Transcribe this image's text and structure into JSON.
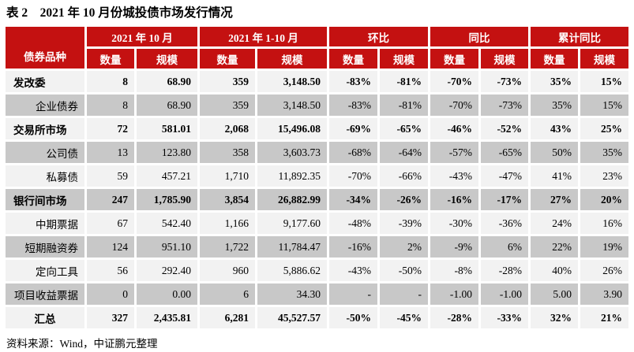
{
  "title": "表 2　2021 年 10 月份城投债市场发行情况",
  "source_note": "资料来源：Wind，中证鹏元整理",
  "colors": {
    "header_red": "#c41111",
    "row_light": "#f2f2f2",
    "row_gray": "#c8c8c8",
    "header_text": "#ffffff",
    "body_text": "#000000"
  },
  "table": {
    "corner_header": "债券品种",
    "group_headers": [
      "2021 年 10 月",
      "2021 年 1-10 月",
      "环比",
      "同比",
      "累计同比"
    ],
    "sub_headers": [
      "数量",
      "规模"
    ],
    "rows": [
      {
        "label": "发改委",
        "style": "section",
        "values": [
          "8",
          "68.90",
          "359",
          "3,148.50",
          "-83%",
          "-81%",
          "-70%",
          "-73%",
          "35%",
          "15%"
        ]
      },
      {
        "label": "企业债券",
        "style": "sub",
        "values": [
          "8",
          "68.90",
          "359",
          "3,148.50",
          "-83%",
          "-81%",
          "-70%",
          "-73%",
          "35%",
          "15%"
        ]
      },
      {
        "label": "交易所市场",
        "style": "section",
        "values": [
          "72",
          "581.01",
          "2,068",
          "15,496.08",
          "-69%",
          "-65%",
          "-46%",
          "-52%",
          "43%",
          "25%"
        ]
      },
      {
        "label": "公司债",
        "style": "sub",
        "values": [
          "13",
          "123.80",
          "358",
          "3,603.73",
          "-68%",
          "-64%",
          "-57%",
          "-65%",
          "50%",
          "35%"
        ]
      },
      {
        "label": "私募债",
        "style": "sub",
        "values": [
          "59",
          "457.21",
          "1,710",
          "11,892.35",
          "-70%",
          "-66%",
          "-43%",
          "-47%",
          "41%",
          "23%"
        ]
      },
      {
        "label": "银行间市场",
        "style": "section",
        "values": [
          "247",
          "1,785.90",
          "3,854",
          "26,882.99",
          "-34%",
          "-26%",
          "-16%",
          "-17%",
          "27%",
          "20%"
        ]
      },
      {
        "label": "中期票据",
        "style": "sub",
        "values": [
          "67",
          "542.40",
          "1,166",
          "9,177.60",
          "-48%",
          "-39%",
          "-30%",
          "-36%",
          "24%",
          "16%"
        ]
      },
      {
        "label": "短期融资券",
        "style": "sub",
        "values": [
          "124",
          "951.10",
          "1,722",
          "11,784.47",
          "-16%",
          "2%",
          "-9%",
          "6%",
          "22%",
          "19%"
        ]
      },
      {
        "label": "定向工具",
        "style": "sub",
        "values": [
          "56",
          "292.40",
          "960",
          "5,886.62",
          "-43%",
          "-50%",
          "-8%",
          "-28%",
          "40%",
          "26%"
        ]
      },
      {
        "label": "项目收益票据",
        "style": "sub",
        "values": [
          "0",
          "0.00",
          "6",
          "34.30",
          "-",
          "-",
          "-1.00",
          "-1.00",
          "5.00",
          "3.90"
        ]
      },
      {
        "label": "汇总",
        "style": "total",
        "values": [
          "327",
          "2,435.81",
          "6,281",
          "45,527.57",
          "-50%",
          "-45%",
          "-28%",
          "-33%",
          "32%",
          "21%"
        ]
      }
    ]
  }
}
